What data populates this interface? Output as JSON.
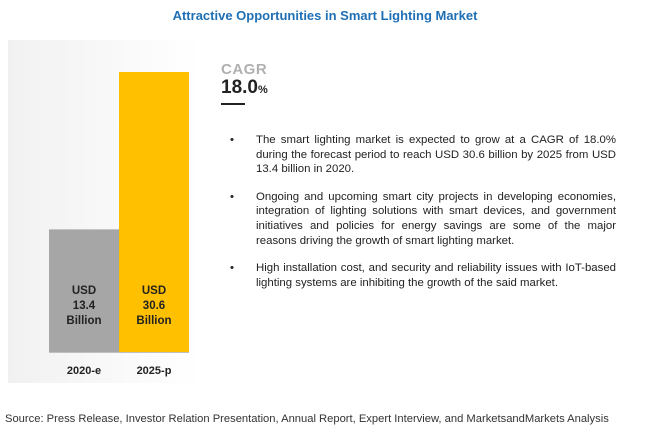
{
  "title": "Attractive Opportunities in Smart Lighting Market",
  "cagr": {
    "label": "CAGR",
    "value": "18.0",
    "unit": "%"
  },
  "bullets": [
    "The smart lighting market is expected to grow at a CAGR of 18.0% during the forecast period to reach USD 30.6 billion by 2025 from USD 13.4 billion in 2020.",
    "Ongoing and upcoming smart city projects in developing economies, integration of lighting solutions with smart devices, and government initiatives and policies for energy savings are some of the major reasons driving the growth of smart lighting market.",
    "High installation cost, and security and reliability issues with IoT-based lighting systems are inhibiting the growth of the said market."
  ],
  "source": "Source: Press Release, Investor Relation Presentation, Annual Report, Expert Interview, and MarketsandMarkets Analysis",
  "colors": {
    "bar_2020": "#a6a6a6",
    "bar_2025": "#ffc000",
    "title": "#1f6fb5"
  },
  "chart_data": {
    "type": "bar",
    "categories": [
      "2020-e",
      "2025-p"
    ],
    "values": [
      13.4,
      30.6
    ],
    "bar_labels": [
      [
        "USD",
        "13.4",
        "Billion"
      ],
      [
        "USD",
        "30.6",
        "Billion"
      ]
    ],
    "title": "",
    "xlabel": "",
    "ylabel": "",
    "ylim": [
      0,
      30.6
    ]
  }
}
